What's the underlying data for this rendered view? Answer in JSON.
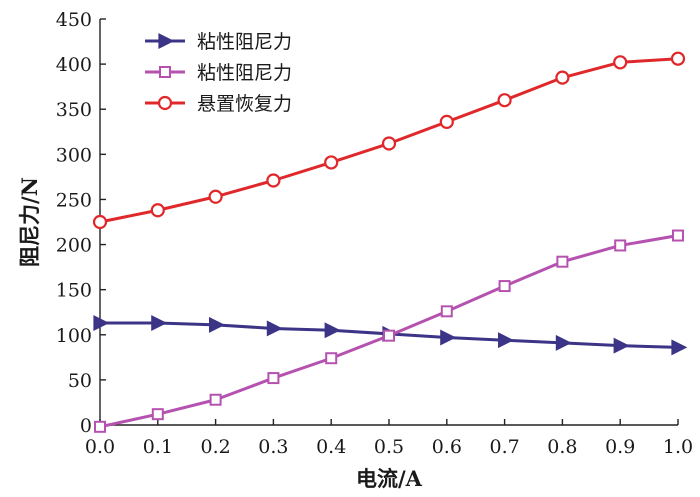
{
  "chart_data": {
    "type": "line",
    "title": "",
    "xlabel": "电流/A",
    "ylabel": "阻尼力/N",
    "xlim": [
      0,
      1
    ],
    "ylim": [
      0,
      450
    ],
    "x_ticks": [
      "0.0",
      "0.1",
      "0.2",
      "0.3",
      "0.4",
      "0.5",
      "0.6",
      "0.7",
      "0.8",
      "0.9",
      "1.0"
    ],
    "y_ticks": [
      "0",
      "50",
      "100",
      "150",
      "200",
      "250",
      "300",
      "350",
      "400",
      "450"
    ],
    "grid": false,
    "legend_position": "top-left",
    "x": [
      0.0,
      0.1,
      0.2,
      0.3,
      0.4,
      0.5,
      0.6,
      0.7,
      0.8,
      0.9,
      1.0
    ],
    "series": [
      {
        "name": "粘性阻尼力",
        "color": "#3b3487",
        "marker": "triangle-right",
        "values": [
          113,
          113,
          111,
          107,
          105,
          101,
          97,
          94,
          91,
          88,
          86
        ]
      },
      {
        "name": "粘性阻尼力",
        "color": "#b552b0",
        "marker": "square",
        "values": [
          -2,
          12,
          28,
          52,
          74,
          99,
          126,
          154,
          181,
          199,
          210
        ]
      },
      {
        "name": "悬置恢复力",
        "color": "#e0282b",
        "marker": "circle",
        "values": [
          225,
          238,
          253,
          271,
          291,
          312,
          336,
          360,
          385,
          402,
          406
        ]
      }
    ]
  }
}
